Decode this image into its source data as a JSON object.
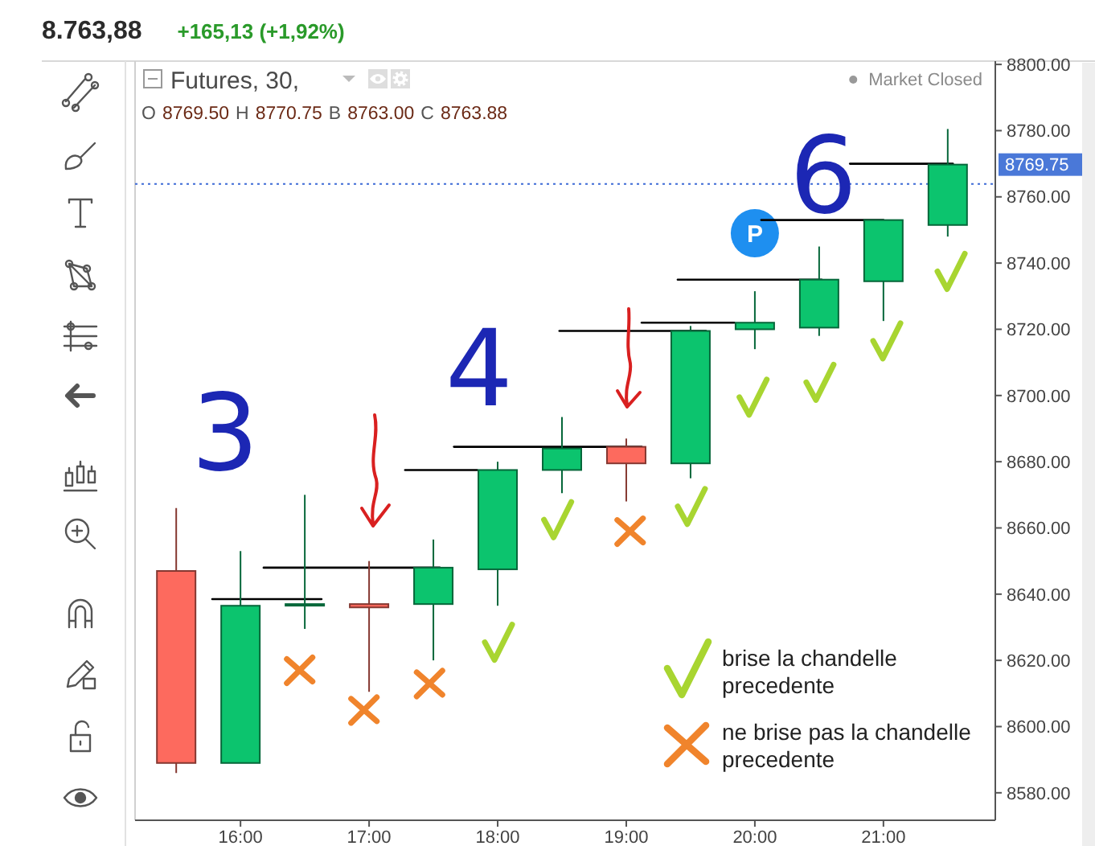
{
  "chart_data": {
    "type": "candlestick",
    "title": "Futures, 30,",
    "subtitle": "O 8769.50 H 8770.75 B 8763.00 C 8763.88",
    "x": [
      15.5,
      16,
      16.5,
      17,
      17.5,
      18,
      18.5,
      19,
      19.5,
      20,
      20.5,
      21,
      21.5
    ],
    "ohlc": [
      [
        8647,
        8666,
        8586,
        8589
      ],
      [
        8589,
        8653,
        8589,
        8636.5
      ],
      [
        8637,
        8670,
        8629.5,
        8637
      ],
      [
        8637,
        8650,
        8610.5,
        8636
      ],
      [
        8637,
        8656.5,
        8620,
        8648
      ],
      [
        8647.5,
        8680,
        8636.5,
        8677.5
      ],
      [
        8677.5,
        8693.5,
        8670.5,
        8684
      ],
      [
        8684.5,
        8687,
        8668,
        8679.5
      ],
      [
        8679.5,
        8721,
        8675,
        8719.5
      ],
      [
        8720,
        8731.5,
        8714,
        8722
      ],
      [
        8720.5,
        8745,
        8718,
        8735
      ],
      [
        8734.5,
        8753,
        8722.5,
        8753
      ],
      [
        8751.5,
        8780.5,
        8748,
        8769.75
      ]
    ],
    "colors": [
      "#fd6a5e",
      "#0cc46e",
      "#0cc46e",
      "#fd6a5e",
      "#0cc46e",
      "#0cc46e",
      "#0cc46e",
      "#fd6a5e",
      "#0cc46e",
      "#0cc46e",
      "#0cc46e",
      "#0cc46e",
      "#0cc46e"
    ],
    "xlim": [
      15.18,
      21.87
    ],
    "xticks": [
      {
        "value": 16,
        "label": "16:00"
      },
      {
        "value": 17,
        "label": "17:00"
      },
      {
        "value": 18,
        "label": "18:00"
      },
      {
        "value": 19,
        "label": "19:00"
      },
      {
        "value": 20,
        "label": "20:00"
      },
      {
        "value": 21,
        "label": "21:00"
      }
    ],
    "ylim": [
      8571.7,
      8801
    ],
    "yticks": [
      {
        "value": 8580,
        "label": "8580.00"
      },
      {
        "value": 8600,
        "label": "8600.00"
      },
      {
        "value": 8620,
        "label": "8620.00"
      },
      {
        "value": 8640,
        "label": "8640.00"
      },
      {
        "value": 8660,
        "label": "8660.00"
      },
      {
        "value": 8680,
        "label": "8680.00"
      },
      {
        "value": 8700,
        "label": "8700.00"
      },
      {
        "value": 8720,
        "label": "8720.00"
      },
      {
        "value": 8740,
        "label": "8740.00"
      },
      {
        "value": 8760,
        "label": "8760.00"
      },
      {
        "value": 8780,
        "label": "8780.00"
      },
      {
        "value": 8800,
        "label": "8800.00"
      }
    ],
    "series": [
      {
        "type": "line",
        "color": "#000000",
        "x": [
          15.78,
          16.63
        ],
        "values": [
          8638.5,
          8638.5
        ]
      },
      {
        "type": "line",
        "color": "#000000",
        "x": [
          16.18,
          17.55
        ],
        "values": [
          8648,
          8648
        ]
      },
      {
        "type": "line",
        "color": "#000000",
        "x": [
          17.28,
          17.84
        ],
        "values": [
          8677.5,
          8677.5
        ]
      },
      {
        "type": "line",
        "color": "#000000",
        "x": [
          17.66,
          19.12
        ],
        "values": [
          8684.5,
          8684.5
        ]
      },
      {
        "type": "line",
        "color": "#000000",
        "x": [
          18.48,
          19.62
        ],
        "values": [
          8719.5,
          8719.5
        ]
      },
      {
        "type": "line",
        "color": "#000000",
        "x": [
          19.12,
          19.84
        ],
        "values": [
          8722,
          8722
        ]
      },
      {
        "type": "line",
        "color": "#000000",
        "x": [
          19.4,
          20.52
        ],
        "values": [
          8735,
          8735
        ]
      },
      {
        "type": "line",
        "color": "#000000",
        "x": [
          20.05,
          21.0
        ],
        "values": [
          8753,
          8753
        ]
      },
      {
        "type": "line",
        "color": "#000000",
        "x": [
          20.74,
          21.54
        ],
        "values": [
          8770,
          8770
        ]
      },
      {
        "type": "scatter",
        "name": "brise la chandelle precedente",
        "color": "#a8d531",
        "x": [
          18.0,
          18.46,
          19.5,
          19.98,
          20.5,
          21.02,
          21.52
        ],
        "values": [
          8625,
          8662,
          8666,
          8699,
          8703.5,
          8716,
          8737
        ]
      },
      {
        "type": "scatter",
        "name": "ne brise pas la chandelle precedente",
        "color": "#f0842c",
        "marker": "cross",
        "x": [
          16.46,
          16.96,
          17.47,
          19.03
        ],
        "values": [
          8617,
          8605,
          8613,
          8659
        ]
      }
    ],
    "ref_lines": [
      {
        "axis": "y",
        "value": 8763.88,
        "color": "#3d6ad6",
        "line_style": "dotted"
      }
    ],
    "legend": "bottom right",
    "annotations": [
      "8.763,88",
      "+165,13 (+1,92%)",
      "Market Closed",
      "8769.75",
      "3",
      "4",
      "6",
      {
        "text": "P",
        "x": 20,
        "y": 8749
      }
    ]
  }
}
